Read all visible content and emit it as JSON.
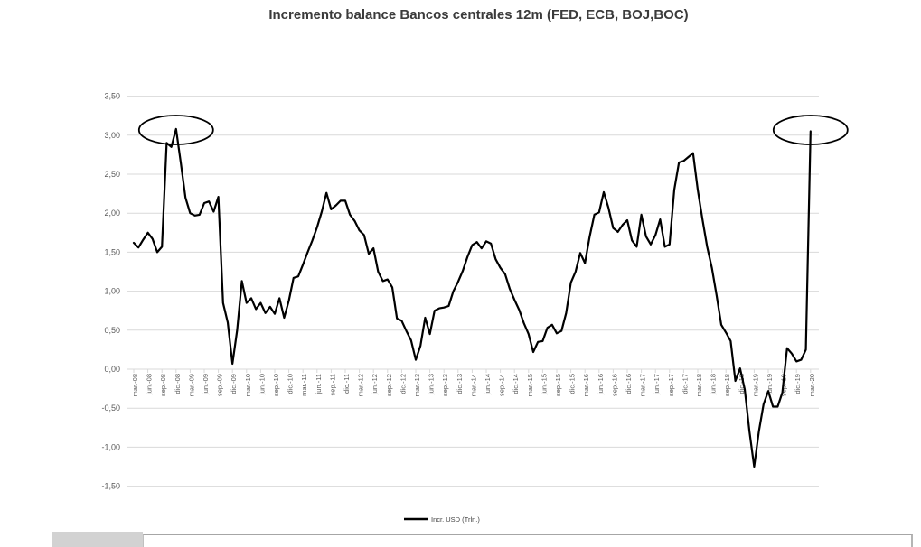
{
  "title": "Incremento balance Bancos centrales 12m (FED, ECB, BOJ,BOC)",
  "colors": {
    "line": "#000000",
    "gridline": "#d9d9d9",
    "axis_text": "#595959",
    "title_text": "#3b3b3b",
    "legend_text": "#404040",
    "annotation": "#000000",
    "background": "#ffffff",
    "footer_thumb": "#d2d2d2"
  },
  "chart_data": {
    "type": "line",
    "title": "Incremento balance Bancos centrales 12m (FED, ECB, BOJ,BOC)",
    "legend": [
      "Incr. USD (Trln.)"
    ],
    "legend_position": "bottom-center",
    "grid": "horizontal",
    "ylim": [
      -1.5,
      3.5
    ],
    "y_tick_labels": [
      "3,50",
      "3,00",
      "2,50",
      "2,00",
      "1,50",
      "1,00",
      "0,50",
      "0,00",
      "-0,50",
      "-1,00",
      "-1,50"
    ],
    "y_tick_values": [
      3.5,
      3.0,
      2.5,
      2.0,
      1.5,
      1.0,
      0.5,
      0.0,
      -0.5,
      -1.0,
      -1.5
    ],
    "x_tick_labels": [
      "mar.-08",
      "jun.-08",
      "sep.-08",
      "dic.-08",
      "mar.-09",
      "jun.-09",
      "sep.-09",
      "dic.-09",
      "mar.-10",
      "jun.-10",
      "sep.-10",
      "dic.-10",
      "mar.-11",
      "jun.-11",
      "sep.-11",
      "dic.-11",
      "mar.-12",
      "jun.-12",
      "sep.-12",
      "dic.-12",
      "mar.-13",
      "jun.-13",
      "sep.-13",
      "dic.-13",
      "mar.-14",
      "jun.-14",
      "sep.-14",
      "dic.-14",
      "mar.-15",
      "jun.-15",
      "sep.-15",
      "dic.-15",
      "mar.-16",
      "jun.-16",
      "sep.-16",
      "dic.-16",
      "mar.-17",
      "jun.-17",
      "sep.-17",
      "dic.-17",
      "mar.-18",
      "jun.-18",
      "sep.-18",
      "dic.-18",
      "mar.-19",
      "jun.-19",
      "sep.-19",
      "dic.-19",
      "mar.-20"
    ],
    "x_frequency": "monthly (labels quarterly)",
    "series": [
      {
        "name": "Incr. USD (Trln.)",
        "start": "mar.-08",
        "end": "mar.-20",
        "monthly_values": [
          1.62,
          1.56,
          1.66,
          1.75,
          1.67,
          1.5,
          1.57,
          2.9,
          2.85,
          3.08,
          2.65,
          2.2,
          2.0,
          1.97,
          1.98,
          2.13,
          2.15,
          2.02,
          2.21,
          0.85,
          0.6,
          0.07,
          0.5,
          1.13,
          0.85,
          0.91,
          0.77,
          0.85,
          0.72,
          0.8,
          0.71,
          0.91,
          0.66,
          0.88,
          1.17,
          1.19,
          1.34,
          1.5,
          1.65,
          1.82,
          2.02,
          2.26,
          2.05,
          2.1,
          2.16,
          2.16,
          1.98,
          1.9,
          1.78,
          1.72,
          1.48,
          1.55,
          1.25,
          1.13,
          1.15,
          1.05,
          0.65,
          0.62,
          0.49,
          0.37,
          0.12,
          0.3,
          0.66,
          0.45,
          0.75,
          0.78,
          0.79,
          0.81,
          1.0,
          1.12,
          1.26,
          1.44,
          1.59,
          1.63,
          1.55,
          1.64,
          1.61,
          1.41,
          1.3,
          1.22,
          1.03,
          0.89,
          0.76,
          0.59,
          0.45,
          0.22,
          0.35,
          0.36,
          0.53,
          0.57,
          0.46,
          0.49,
          0.72,
          1.11,
          1.25,
          1.49,
          1.36,
          1.7,
          1.98,
          2.01,
          2.27,
          2.07,
          1.81,
          1.76,
          1.85,
          1.91,
          1.65,
          1.57,
          1.98,
          1.7,
          1.6,
          1.72,
          1.92,
          1.57,
          1.6,
          2.3,
          2.65,
          2.67,
          2.72,
          2.77,
          2.3,
          1.92,
          1.57,
          1.3,
          0.95,
          0.57,
          0.47,
          0.36,
          -0.15,
          0.01,
          -0.26,
          -0.8,
          -1.25,
          -0.8,
          -0.45,
          -0.28,
          -0.48,
          -0.48,
          -0.3,
          0.27,
          0.2,
          0.1,
          0.12,
          0.25,
          3.05
        ]
      }
    ],
    "annotations": [
      {
        "shape": "ellipse",
        "month_index": 9,
        "highlights": "dic.-08 peak (3,08)"
      },
      {
        "shape": "ellipse",
        "month_index": 144,
        "highlights": "mar.-20 peak (3,05)"
      }
    ]
  }
}
